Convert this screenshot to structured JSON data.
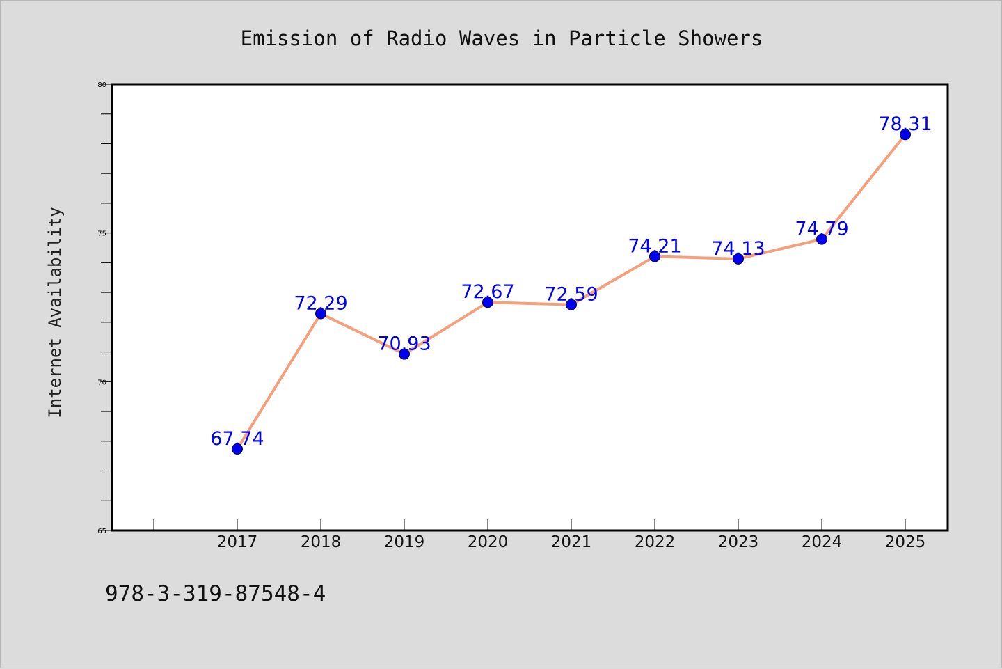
{
  "chart_data": {
    "type": "line",
    "title": "Emission of Radio Waves in Particle Showers",
    "xlabel": "",
    "ylabel": "Internet Availability",
    "categories": [
      "2017",
      "2018",
      "2019",
      "2020",
      "2021",
      "2022",
      "2023",
      "2024",
      "2025"
    ],
    "series": [
      {
        "values": [
          67.74,
          72.29,
          70.93,
          72.67,
          72.59,
          74.21,
          74.13,
          74.79,
          78.31
        ],
        "data_labels": [
          "67.74",
          "72.29",
          "70.93",
          "72.67",
          "72.59",
          "74.21",
          "74.13",
          "74.79",
          "78.31"
        ]
      }
    ],
    "ylim": [
      65,
      80
    ],
    "y_ticks": [
      65,
      70,
      75,
      80
    ],
    "y_minor_step": 1,
    "grid": false,
    "line_color": "#f4a07c",
    "marker_color": "#0000ee",
    "label_color": "#0000ee"
  },
  "footer_text": "978-3-319-87548-4"
}
